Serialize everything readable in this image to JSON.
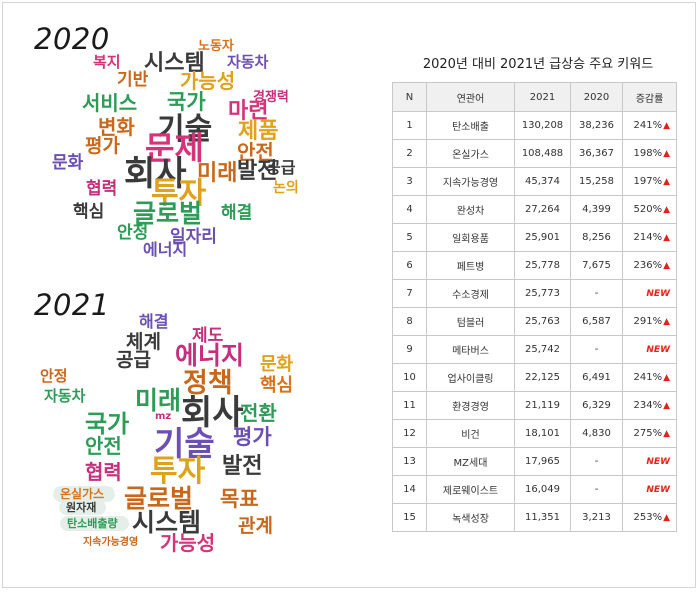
{
  "page": {
    "year_2020": "2020",
    "year_2021": "2021"
  },
  "cloud_2020": [
    {
      "text": "노동자",
      "color": "#d8721c"
    },
    {
      "text": "복지",
      "color": "#d6337b"
    },
    {
      "text": "시스템",
      "color": "#3a3a3a"
    },
    {
      "text": "자동차",
      "color": "#6c4fb2"
    },
    {
      "text": "기반",
      "color": "#c9681d"
    },
    {
      "text": "가능성",
      "color": "#e0a21c"
    },
    {
      "text": "경쟁력",
      "color": "#c52f7d"
    },
    {
      "text": "서비스",
      "color": "#2e9b57"
    },
    {
      "text": "국가",
      "color": "#2e9b57"
    },
    {
      "text": "마련",
      "color": "#d6337b"
    },
    {
      "text": "변화",
      "color": "#c9681d"
    },
    {
      "text": "기술",
      "color": "#3a3a3a"
    },
    {
      "text": "제품",
      "color": "#e0a21c"
    },
    {
      "text": "평가",
      "color": "#c9681d"
    },
    {
      "text": "문제",
      "color": "#d6337b"
    },
    {
      "text": "안전",
      "color": "#c9681d"
    },
    {
      "text": "문화",
      "color": "#6c4fb2"
    },
    {
      "text": "회사",
      "color": "#3a3a3a"
    },
    {
      "text": "미래",
      "color": "#c9681d"
    },
    {
      "text": "발전",
      "color": "#3a3a3a"
    },
    {
      "text": "공급",
      "color": "#3a3a3a"
    },
    {
      "text": "협력",
      "color": "#c52f7d"
    },
    {
      "text": "투자",
      "color": "#e0a21c"
    },
    {
      "text": "논의",
      "color": "#e0a21c"
    },
    {
      "text": "핵심",
      "color": "#3a3a3a"
    },
    {
      "text": "글로벌",
      "color": "#2e9b57"
    },
    {
      "text": "해결",
      "color": "#2e9b57"
    },
    {
      "text": "안정",
      "color": "#2e9b57"
    },
    {
      "text": "일자리",
      "color": "#6c4fb2"
    },
    {
      "text": "에너지",
      "color": "#6c4fb2"
    }
  ],
  "cloud_2021": [
    {
      "text": "해결",
      "color": "#6c4fb2"
    },
    {
      "text": "제도",
      "color": "#c52f7d"
    },
    {
      "text": "체계",
      "color": "#3a3a3a"
    },
    {
      "text": "에너지",
      "color": "#c52f7d"
    },
    {
      "text": "공급",
      "color": "#3a3a3a"
    },
    {
      "text": "문화",
      "color": "#e0a21c"
    },
    {
      "text": "정책",
      "color": "#c9681d"
    },
    {
      "text": "핵심",
      "color": "#d8721c"
    },
    {
      "text": "안정",
      "color": "#c9681d"
    },
    {
      "text": "자동차",
      "color": "#2e9b57"
    },
    {
      "text": "미래",
      "color": "#2e9b57"
    },
    {
      "text": "회사",
      "color": "#3a3a3a"
    },
    {
      "text": "mz",
      "color": "#c52f7d"
    },
    {
      "text": "전환",
      "color": "#2e9b57"
    },
    {
      "text": "국가",
      "color": "#2e9b57"
    },
    {
      "text": "기술",
      "color": "#6c4fb2"
    },
    {
      "text": "평가",
      "color": "#6c4fb2"
    },
    {
      "text": "안전",
      "color": "#2e9b57"
    },
    {
      "text": "투자",
      "color": "#e0a21c"
    },
    {
      "text": "발전",
      "color": "#3a3a3a"
    },
    {
      "text": "협력",
      "color": "#c52f7d"
    },
    {
      "text": "온실가스",
      "color": "#d8721c"
    },
    {
      "text": "글로벌",
      "color": "#c9681d"
    },
    {
      "text": "목표",
      "color": "#c9681d"
    },
    {
      "text": "원자재",
      "color": "#3a3a3a"
    },
    {
      "text": "탄소배출량",
      "color": "#2e9b57"
    },
    {
      "text": "시스템",
      "color": "#3a3a3a"
    },
    {
      "text": "관계",
      "color": "#c9681d"
    },
    {
      "text": "지속가능경영",
      "color": "#c9681d"
    },
    {
      "text": "가능성",
      "color": "#d6337b"
    }
  ],
  "table": {
    "title": "2020년 대비 2021년 급상승 주요 키워드",
    "headers": [
      "N",
      "연관어",
      "2021",
      "2020",
      "증감률"
    ],
    "new_label": "NEW",
    "up_symbol": "▲",
    "up_color": "#e0231b",
    "rows": [
      {
        "n": "1",
        "word": "탄소배출",
        "y2021": "130,208",
        "y2020": "38,236",
        "rate": "241%",
        "is_new": false
      },
      {
        "n": "2",
        "word": "온실가스",
        "y2021": "108,488",
        "y2020": "36,367",
        "rate": "198%",
        "is_new": false
      },
      {
        "n": "3",
        "word": "지속가능경영",
        "y2021": "45,374",
        "y2020": "15,258",
        "rate": "197%",
        "is_new": false
      },
      {
        "n": "4",
        "word": "완성차",
        "y2021": "27,264",
        "y2020": "4,399",
        "rate": "520%",
        "is_new": false
      },
      {
        "n": "5",
        "word": "일회용품",
        "y2021": "25,901",
        "y2020": "8,256",
        "rate": "214%",
        "is_new": false
      },
      {
        "n": "6",
        "word": "페트병",
        "y2021": "25,778",
        "y2020": "7,675",
        "rate": "236%",
        "is_new": false
      },
      {
        "n": "7",
        "word": "수소경제",
        "y2021": "25,773",
        "y2020": "-",
        "rate": "",
        "is_new": true
      },
      {
        "n": "8",
        "word": "텀블러",
        "y2021": "25,763",
        "y2020": "6,587",
        "rate": "291%",
        "is_new": false
      },
      {
        "n": "9",
        "word": "메타버스",
        "y2021": "25,742",
        "y2020": "-",
        "rate": "",
        "is_new": true
      },
      {
        "n": "10",
        "word": "업사이클링",
        "y2021": "22,125",
        "y2020": "6,491",
        "rate": "241%",
        "is_new": false
      },
      {
        "n": "11",
        "word": "환경경영",
        "y2021": "21,119",
        "y2020": "6,329",
        "rate": "234%",
        "is_new": false
      },
      {
        "n": "12",
        "word": "비건",
        "y2021": "18,101",
        "y2020": "4,830",
        "rate": "275%",
        "is_new": false
      },
      {
        "n": "13",
        "word": "MZ세대",
        "y2021": "17,965",
        "y2020": "-",
        "rate": "",
        "is_new": true
      },
      {
        "n": "14",
        "word": "제로웨이스트",
        "y2021": "16,049",
        "y2020": "-",
        "rate": "",
        "is_new": true
      },
      {
        "n": "15",
        "word": "녹색성장",
        "y2021": "11,351",
        "y2020": "3,213",
        "rate": "253%",
        "is_new": false
      }
    ]
  }
}
